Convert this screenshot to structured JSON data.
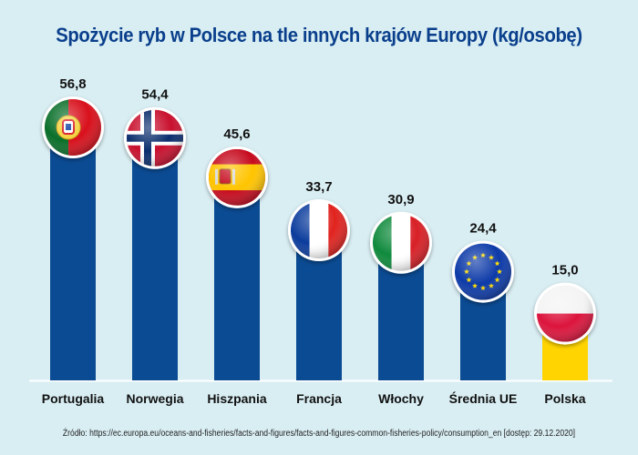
{
  "title": "Spożycie ryb w Polsce na tle innych krajów Europy (kg/osobę)",
  "source": "Źródło: https://ec.europa.eu/oceans-and-fisheries/facts-and-figures/facts-and-figures-common-fisheries-policy/consumption_en [dostęp: 29.12.2020]",
  "colors": {
    "background": "#d9eef3",
    "bar": "#0b4b93",
    "highlight": "#ffd400",
    "title": "#0a3f8c"
  },
  "chart_data": {
    "type": "bar",
    "categories": [
      "Portugalia",
      "Norwegia",
      "Hiszpania",
      "Francja",
      "Włochy",
      "Średnia UE",
      "Polska"
    ],
    "values": [
      56.8,
      54.4,
      45.6,
      33.7,
      30.9,
      24.4,
      15.0
    ],
    "value_labels": [
      "56,8",
      "54,4",
      "45,6",
      "33,7",
      "30,9",
      "24,4",
      "15,0"
    ],
    "flags": [
      "portugal-flag",
      "norway-flag",
      "spain-flag",
      "france-flag",
      "italy-flag",
      "eu-flag",
      "poland-flag"
    ],
    "highlight": "Polska",
    "title": "Spożycie ryb w Polsce na tle innych krajów Europy (kg/osobę)",
    "xlabel": "",
    "ylabel": "",
    "grid": false,
    "legend": "none"
  }
}
